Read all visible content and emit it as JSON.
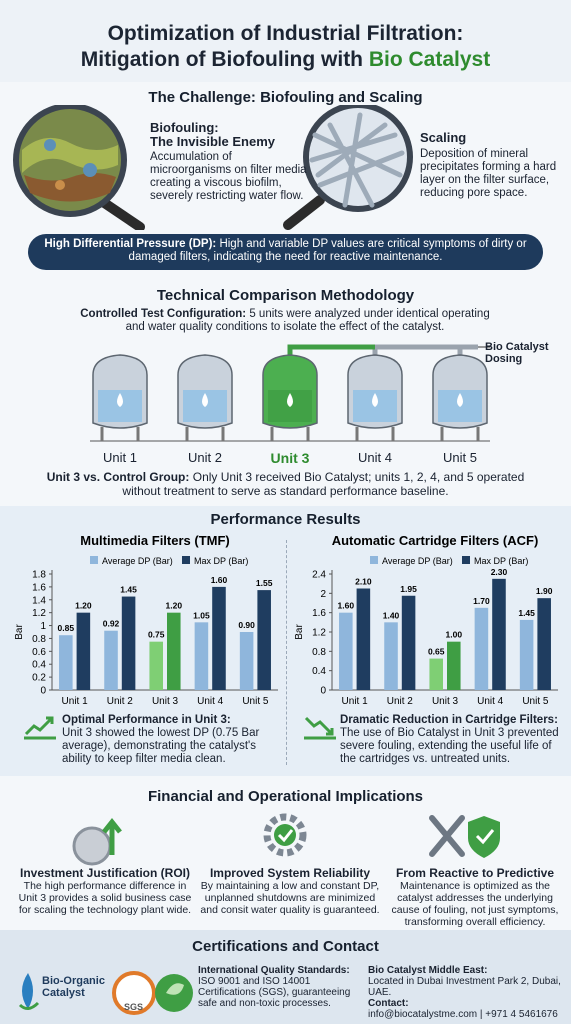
{
  "header": {
    "title_line1": "Optimization of Industrial Filtration:",
    "title_line2": "Mitigation of Biofouling with",
    "title_highlight": "Bio Catalyst"
  },
  "challenge": {
    "title": "The Challenge: Biofouling and Scaling",
    "biofouling": {
      "heading1": "Biofouling:",
      "heading2": "The Invisible Enemy",
      "text": "Accumulation of microorganisms on filter media creating a viscous biofilm, severely restricting water flow."
    },
    "scaling": {
      "heading": "Scaling",
      "text": "Deposition of mineral precipitates forming a hard layer on the filter surface, reducing pore space."
    },
    "banner": {
      "label": "High Differential Pressure (DP):",
      "text": "High and variable DP values are critical symptoms of dirty or damaged filters, indicating the need for reactive maintenance."
    }
  },
  "methodology": {
    "title": "Technical Comparison Methodology",
    "config_label": "Controlled Test Configuration:",
    "config_text": "5 units were analyzed under identical operating and water quality conditions to isolate the effect of the catalyst.",
    "dosing": "Bio Catalyst Dosing",
    "units": [
      "Unit 1",
      "Unit 2",
      "Unit 3",
      "Unit 4",
      "Unit 5"
    ],
    "note_label": "Unit 3 vs. Control Group:",
    "note_text": "Only Unit 3 received Bio Catalyst; units 1, 2, 4, and 5 operated without treatment to serve as standard performance baseline."
  },
  "results": {
    "title": "Performance Results",
    "note1": {
      "label": "Optimal Performance in Unit 3:",
      "text": "Unit 3 showed the lowest DP (0.75 Bar average), demonstrating the catalyst's ability to keep filter media clean."
    },
    "note2": {
      "label": "Dramatic Reduction in Cartridge Filters:",
      "text": "The use of Bio Catalyst in Unit 3 prevented severe fouling, extending the useful life of the cartridges vs. untreated units."
    }
  },
  "chart_data": [
    {
      "type": "bar",
      "title": "Multimedia Filters (TMF)",
      "y_label": "Bar",
      "categories": [
        "Unit 1",
        "Unit 2",
        "Unit 3",
        "Unit 4",
        "Unit 5"
      ],
      "series": [
        {
          "name": "Average DP (Bar)",
          "color": "#8fb6dc",
          "colors": [
            "#8fb6dc",
            "#8fb6dc",
            "#7fcf74",
            "#8fb6dc",
            "#8fb6dc"
          ],
          "values": [
            0.85,
            0.92,
            0.75,
            1.05,
            0.9
          ],
          "value_labels": [
            "0.85",
            "0.92",
            "0.75",
            "1.05",
            "0.90"
          ]
        },
        {
          "name": "Max DP (Bar)",
          "color": "#1f3d60",
          "colors": [
            "#1f3d60",
            "#1f3d60",
            "#3f9e44",
            "#1f3d60",
            "#1f3d60"
          ],
          "values": [
            1.2,
            1.45,
            1.2,
            1.6,
            1.55
          ],
          "value_labels": [
            "1.20",
            "1.45",
            "1.20",
            "1.60",
            "1.55"
          ]
        }
      ],
      "ylim": [
        0,
        1.8
      ],
      "yticks": [
        0,
        0.2,
        0.4,
        0.6,
        0.8,
        1,
        1.2,
        1.4,
        1.6,
        1.8
      ],
      "grid": false
    },
    {
      "type": "bar",
      "title": "Automatic Cartridge Filters (ACF)",
      "y_label": "Bar",
      "categories": [
        "Unit 1",
        "Unit 2",
        "Unit 3",
        "Unit 4",
        "Unit 5"
      ],
      "series": [
        {
          "name": "Average DP (Bar)",
          "color": "#8fb6dc",
          "colors": [
            "#8fb6dc",
            "#8fb6dc",
            "#7fcf74",
            "#8fb6dc",
            "#8fb6dc"
          ],
          "values": [
            1.6,
            1.4,
            0.65,
            1.7,
            1.45
          ],
          "value_labels": [
            "1.60",
            "1.40",
            "0.65",
            "1.70",
            "1.45"
          ]
        },
        {
          "name": "Max DP (Bar)",
          "color": "#1f3d60",
          "colors": [
            "#1f3d60",
            "#1f3d60",
            "#3f9e44",
            "#1f3d60",
            "#1f3d60"
          ],
          "values": [
            2.1,
            1.95,
            1.0,
            2.3,
            1.9
          ],
          "value_labels": [
            "2.10",
            "1.95",
            "1.00",
            "2.30",
            "1.90"
          ]
        }
      ],
      "ylim": [
        0,
        2.4
      ],
      "yticks": [
        0,
        0.4,
        0.8,
        1.2,
        1.6,
        2,
        2.4
      ],
      "grid": false
    }
  ],
  "implications": {
    "title": "Financial and Operational Implications",
    "items": [
      {
        "heading": "Investment Justification (ROI)",
        "text": "The high performance difference in Unit 3 provides a solid business case for scaling the technology plant wide."
      },
      {
        "heading": "Improved System Reliability",
        "text": "By maintaining a low and constant DP, unplanned shutdowns are minimized and consit water quality is guaranteed."
      },
      {
        "heading": "From Reactive to Predictive",
        "text": "Maintenance is optimized as the catalyst addresses the underlying cause of fouling, not just symptoms, transforming overall efficiency."
      }
    ]
  },
  "contact": {
    "title": "Certifications and Contact",
    "logo_line1": "Bio-Organic",
    "logo_line2": "Catalyst",
    "sgs": "SGS",
    "standards_label": "International Quality Standards:",
    "standards_text": "ISO 9001 and ISO 14001 Certifications (SGS), guaranteeing safe and non-toxic processes.",
    "office_label": "Bio Catalyst Middle East:",
    "office_text": "Located in Dubai Investment Park 2, Dubai, UAE.",
    "contact_label": "Contact:",
    "contact_text": "info@biocatalystme.com | +971 4 5461676"
  }
}
